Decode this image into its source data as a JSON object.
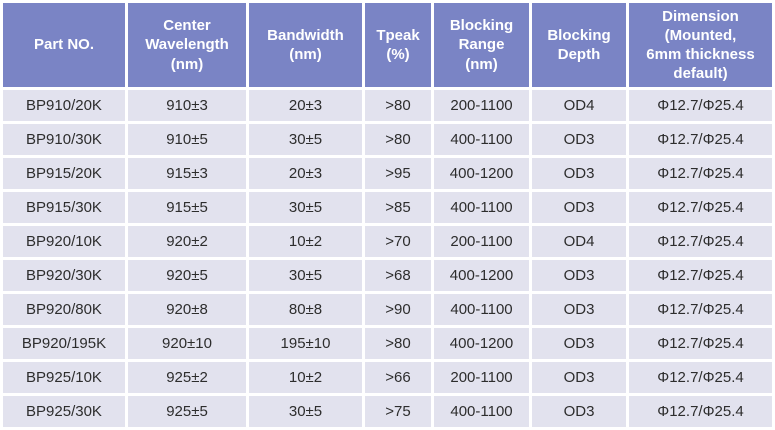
{
  "table": {
    "headers": [
      "Part NO.",
      "Center\nWavelength\n(nm)",
      "Bandwidth\n(nm)",
      "Tpeak\n(%)",
      "Blocking\nRange\n(nm)",
      "Blocking\nDepth",
      "Dimension\n(Mounted,\n6mm thickness\ndefault)"
    ],
    "rows": [
      [
        "BP910/20K",
        "910±3",
        "20±3",
        ">80",
        "200-1100",
        "OD4",
        "Φ12.7/Φ25.4"
      ],
      [
        "BP910/30K",
        "910±5",
        "30±5",
        ">80",
        "400-1100",
        "OD3",
        "Φ12.7/Φ25.4"
      ],
      [
        "BP915/20K",
        "915±3",
        "20±3",
        ">95",
        "400-1200",
        "OD3",
        "Φ12.7/Φ25.4"
      ],
      [
        "BP915/30K",
        "915±5",
        "30±5",
        ">85",
        "400-1100",
        "OD3",
        "Φ12.7/Φ25.4"
      ],
      [
        "BP920/10K",
        "920±2",
        "10±2",
        ">70",
        "200-1100",
        "OD4",
        "Φ12.7/Φ25.4"
      ],
      [
        "BP920/30K",
        "920±5",
        "30±5",
        ">68",
        "400-1200",
        "OD3",
        "Φ12.7/Φ25.4"
      ],
      [
        "BP920/80K",
        "920±8",
        "80±8",
        ">90",
        "400-1100",
        "OD3",
        "Φ12.7/Φ25.4"
      ],
      [
        "BP920/195K",
        "920±10",
        "195±10",
        ">80",
        "400-1200",
        "OD3",
        "Φ12.7/Φ25.4"
      ],
      [
        "BP925/10K",
        "925±2",
        "10±2",
        ">66",
        "200-1100",
        "OD3",
        "Φ12.7/Φ25.4"
      ],
      [
        "BP925/30K",
        "925±5",
        "30±5",
        ">75",
        "400-1100",
        "OD3",
        "Φ12.7/Φ25.4"
      ]
    ]
  },
  "colors": {
    "header_bg": "#7a84c5",
    "row_bg": "#e2e2ee",
    "grid": "#ffffff",
    "header_text": "#ffffff",
    "body_text": "#2d2d2d"
  }
}
